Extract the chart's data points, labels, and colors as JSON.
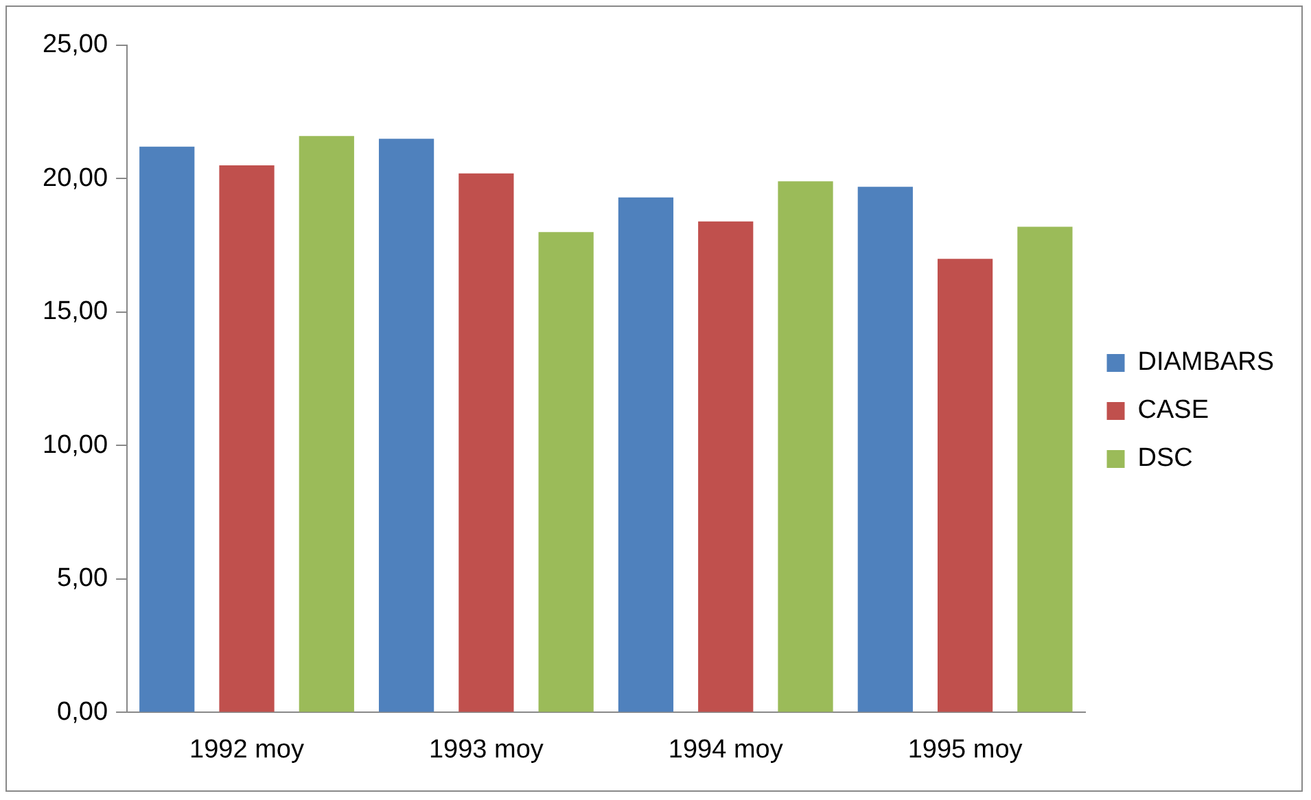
{
  "chart_data": {
    "type": "bar",
    "categories": [
      "1992 moy",
      "1993 moy",
      "1994 moy",
      "1995 moy"
    ],
    "series": [
      {
        "name": "DIAMBARS",
        "color": "#4f81bd",
        "values": [
          21.2,
          21.5,
          19.3,
          19.7
        ]
      },
      {
        "name": "CASE",
        "color": "#c0504d",
        "values": [
          20.5,
          20.2,
          18.4,
          17.0
        ]
      },
      {
        "name": "DSC",
        "color": "#9bbb59",
        "values": [
          21.6,
          18.0,
          19.9,
          18.2
        ]
      }
    ],
    "ylim": [
      0,
      25
    ],
    "yticks": [
      {
        "value": 0,
        "label": "0,00"
      },
      {
        "value": 5,
        "label": "5,00"
      },
      {
        "value": 10,
        "label": "10,00"
      },
      {
        "value": 15,
        "label": "15,00"
      },
      {
        "value": 20,
        "label": "20,00"
      },
      {
        "value": 25,
        "label": "25,00"
      }
    ],
    "grid": false,
    "legend": "right"
  }
}
